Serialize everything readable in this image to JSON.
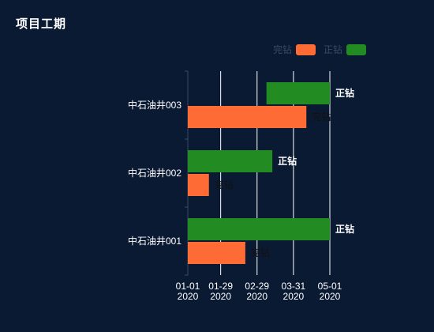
{
  "title": "项目工期",
  "legend": [
    {
      "name": "完钻",
      "color": "#ff6b35"
    },
    {
      "name": "正钻",
      "color": "#228b22"
    }
  ],
  "chart_data": {
    "type": "bar",
    "orientation": "horizontal",
    "title": "项目工期",
    "categories": [
      "中石油井001",
      "中石油井002",
      "中石油井003"
    ],
    "x_ticks": [
      "2020-01-01",
      "2020-01-29",
      "2020-02-29",
      "2020-03-31",
      "2020-05-01"
    ],
    "x_tick_labels": [
      {
        "top": "01-01",
        "bottom": "2020"
      },
      {
        "top": "01-29",
        "bottom": "2020"
      },
      {
        "top": "02-29",
        "bottom": "2020"
      },
      {
        "top": "03-31",
        "bottom": "2020"
      },
      {
        "top": "05-01",
        "bottom": "2020"
      }
    ],
    "xlim": [
      "2020-01-01",
      "2020-05-01"
    ],
    "grid": true,
    "legend_position": "top-right",
    "series": [
      {
        "name": "完钻",
        "color": "#ff6b35",
        "data": [
          {
            "start": "2020-01-01",
            "end": "2020-02-19",
            "label": "完钻"
          },
          {
            "start": "2020-01-01",
            "end": "2020-01-19",
            "label": "完钻"
          },
          {
            "start": "2020-01-01",
            "end": "2020-04-11",
            "label": "完钻"
          }
        ]
      },
      {
        "name": "正钻",
        "color": "#228b22",
        "data": [
          {
            "start": "2020-01-01",
            "end": "2020-05-01",
            "label": "正钻"
          },
          {
            "start": "2020-01-01",
            "end": "2020-03-13",
            "label": "正钻"
          },
          {
            "start": "2020-03-08",
            "end": "2020-05-01",
            "label": "正钻"
          }
        ]
      }
    ]
  }
}
